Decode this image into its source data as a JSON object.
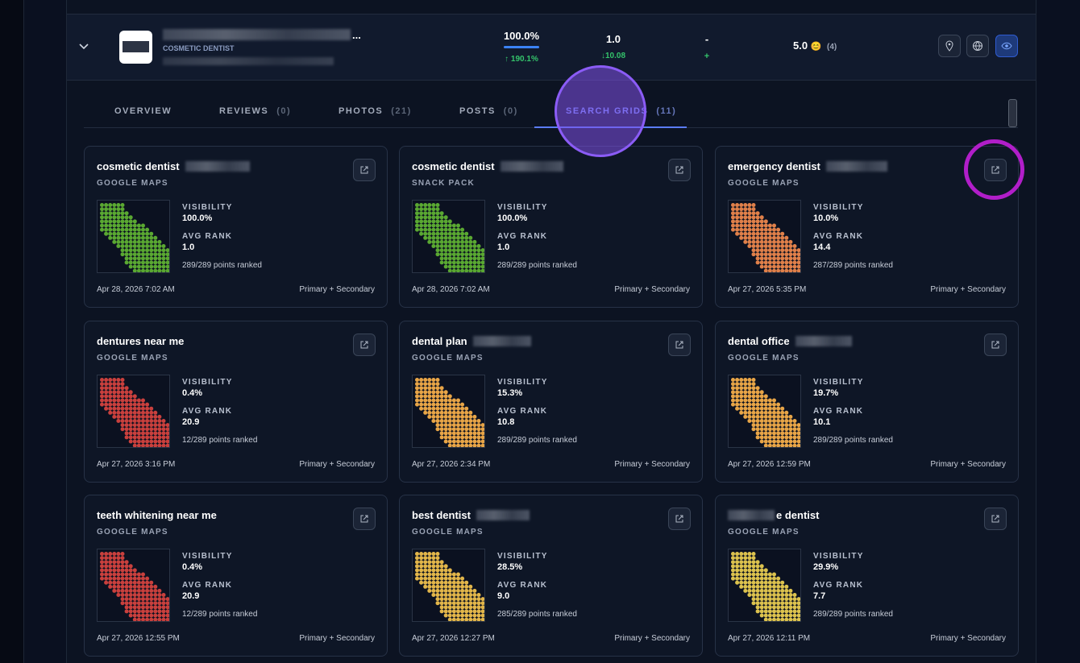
{
  "header": {
    "category": "COSMETIC DENTIST",
    "name_ellipsis": "...",
    "visibility": "100.0%",
    "visibility_change": "↑ 190.1%",
    "rank": "1.0",
    "rank_change": "↓10.08",
    "third": "-",
    "third_change": "+",
    "rating": "5.0",
    "rating_emoji": "😊",
    "rating_count": "(4)"
  },
  "tabs": [
    {
      "label": "OVERVIEW"
    },
    {
      "label": "REVIEWS",
      "count": "(0)"
    },
    {
      "label": "PHOTOS",
      "count": "(21)"
    },
    {
      "label": "POSTS",
      "count": "(0)"
    },
    {
      "label": "SEARCH GRIDS",
      "count": "(11)"
    }
  ],
  "labels": {
    "visibility": "VISIBILITY",
    "avg_rank": "AVG RANK"
  },
  "cards": [
    {
      "keyword": "cosmetic dentist",
      "source": "GOOGLE MAPS",
      "visibility": "100.0%",
      "avg_rank": "1.0",
      "points": "289/289 points ranked",
      "date": "Apr 28, 2026 7:02 AM",
      "mode": "Primary + Secondary",
      "grid_color": "#5aa832"
    },
    {
      "keyword": "cosmetic dentist",
      "source": "SNACK PACK",
      "visibility": "100.0%",
      "avg_rank": "1.0",
      "points": "289/289 points ranked",
      "date": "Apr 28, 2026 7:02 AM",
      "mode": "Primary + Secondary",
      "grid_color": "#5aa832"
    },
    {
      "keyword": "emergency dentist",
      "source": "GOOGLE MAPS",
      "visibility": "10.0%",
      "avg_rank": "14.4",
      "points": "287/289 points ranked",
      "date": "Apr 27, 2026 5:35 PM",
      "mode": "Primary + Secondary",
      "grid_color": "#e0804a"
    },
    {
      "keyword": "dentures near me",
      "source": "GOOGLE MAPS",
      "visibility": "0.4%",
      "avg_rank": "20.9",
      "points": "12/289 points ranked",
      "date": "Apr 27, 2026 3:16 PM",
      "mode": "Primary + Secondary",
      "grid_color": "#c9403d"
    },
    {
      "keyword": "dental plan",
      "source": "GOOGLE MAPS",
      "visibility": "15.3%",
      "avg_rank": "10.8",
      "points": "289/289 points ranked",
      "date": "Apr 27, 2026 2:34 PM",
      "mode": "Primary + Secondary",
      "grid_color": "#e8a547"
    },
    {
      "keyword": "dental office",
      "source": "GOOGLE MAPS",
      "visibility": "19.7%",
      "avg_rank": "10.1",
      "points": "289/289 points ranked",
      "date": "Apr 27, 2026 12:59 PM",
      "mode": "Primary + Secondary",
      "grid_color": "#e8a547"
    },
    {
      "keyword": "teeth whitening near me",
      "source": "GOOGLE MAPS",
      "visibility": "0.4%",
      "avg_rank": "20.9",
      "points": "12/289 points ranked",
      "date": "Apr 27, 2026 12:55 PM",
      "mode": "Primary + Secondary",
      "grid_color": "#c9403d"
    },
    {
      "keyword": "best dentist",
      "source": "GOOGLE MAPS",
      "visibility": "28.5%",
      "avg_rank": "9.0",
      "points": "285/289 points ranked",
      "date": "Apr 27, 2026 12:27 PM",
      "mode": "Primary + Secondary",
      "grid_color": "#e2b64a"
    },
    {
      "keyword": "e dentist",
      "source": "GOOGLE MAPS",
      "visibility": "29.9%",
      "avg_rank": "7.7",
      "points": "289/289 points ranked",
      "date": "Apr 27, 2026 12:11 PM",
      "mode": "Primary + Secondary",
      "grid_color": "#dcc24e"
    }
  ]
}
